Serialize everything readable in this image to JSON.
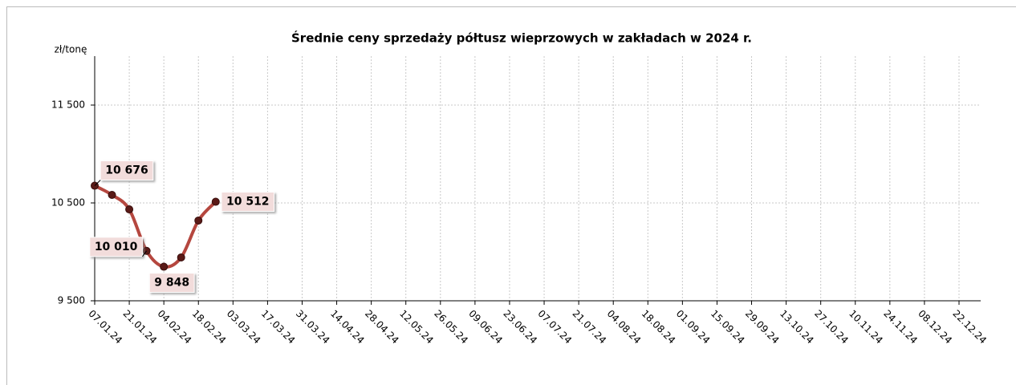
{
  "chart_data": {
    "type": "line",
    "title": "Średnie ceny sprzedaży półtusz wieprzowych w zakładach w 2024 r.",
    "y_label": "zł/tonę",
    "categories": [
      "07.01.24",
      null,
      "21.01.24",
      null,
      "04.02.24",
      null,
      "18.02.24",
      null,
      "03.03.24",
      null,
      "17.03.24",
      null,
      "31.03.24",
      null,
      "14.04.24",
      null,
      "28.04.24",
      null,
      "12.05.24",
      null,
      "26.05.24",
      null,
      "09.06.24",
      null,
      "23.06.24",
      null,
      "07.07.24",
      null,
      "21.07.24",
      null,
      "04.08.24",
      null,
      "18.08.24",
      null,
      "01.09.24",
      null,
      "15.09.24",
      null,
      "29.09.24",
      null,
      "13.10.24",
      null,
      "27.10.24",
      null,
      "10.11.24",
      null,
      "24.11.24",
      null,
      "08.12.24",
      null,
      "22.12.24",
      null
    ],
    "series": [
      {
        "color": "#b5473f",
        "values": [
          10676,
          10582,
          10434,
          10010,
          9848,
          9943,
          10320,
          10512,
          null,
          null,
          null,
          null,
          null,
          null,
          null,
          null,
          null,
          null,
          null,
          null,
          null,
          null,
          null,
          null,
          null,
          null,
          null,
          null,
          null,
          null,
          null,
          null,
          null,
          null,
          null,
          null,
          null,
          null,
          null,
          null,
          null,
          null,
          null,
          null,
          null,
          null,
          null,
          null,
          null,
          null,
          null,
          null
        ],
        "value_labels": [
          "10 676",
          null,
          null,
          "10 010",
          "9 848",
          null,
          null,
          "10 512",
          null,
          null,
          null,
          null,
          null,
          null,
          null,
          null,
          null,
          null,
          null,
          null,
          null,
          null,
          null,
          null,
          null,
          null,
          null,
          null,
          null,
          null,
          null,
          null,
          null,
          null,
          null,
          null,
          null,
          null,
          null,
          null,
          null,
          null,
          null,
          null,
          null,
          null,
          null,
          null,
          null,
          null,
          null,
          null
        ]
      }
    ],
    "ylim": [
      9500,
      12000
    ],
    "yticks": [
      {
        "value": 9500,
        "label": "9 500"
      },
      {
        "value": 10500,
        "label": "10 500"
      },
      {
        "value": 11500,
        "label": "11 500"
      }
    ],
    "grid": true
  }
}
